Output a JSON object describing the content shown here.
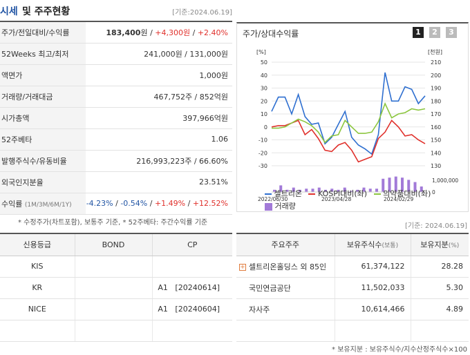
{
  "header": {
    "title_part1": "시세",
    "title_part2": "및 주주현황",
    "date": "[기준:2024.06.19]"
  },
  "info_rows": [
    {
      "label": "주가/전일대비/수익률",
      "price": "183,400",
      "unit1": "원",
      "sep1": " / ",
      "change": "+4,300",
      "unit2": "원",
      "sep2": " / ",
      "rate": "+2.40%"
    },
    {
      "label": "52Weeks 최고/최저",
      "value": "241,000원 / 131,000원"
    },
    {
      "label": "액면가",
      "value": "1,000원"
    },
    {
      "label": "거래량/거래대금",
      "value": "467,752주 / 852억원"
    },
    {
      "label": "시가총액",
      "value": "397,966억원"
    },
    {
      "label": "52주베타",
      "value": "1.06"
    },
    {
      "label": "발행주식수/유동비율",
      "value": "216,993,223주 / 66.60%"
    },
    {
      "label": "외국인지분율",
      "value": "23.51%"
    },
    {
      "label": "수익률",
      "sub": "(1M/3M/6M/1Y)",
      "r1": "-4.23%",
      "r2": "-0.54%",
      "r3": "+1.49%",
      "r4": "+12.52%",
      "sep": " / "
    }
  ],
  "note1": "* 수정주가(차트포함), 보통주 기준, * 52주베타: 주간수익률 기준",
  "chart_panel": {
    "title": "주가/상대수익률",
    "pages": [
      "1",
      "2",
      "3"
    ],
    "active_page": "1"
  },
  "chart_data": {
    "type": "line",
    "left_unit": "[%]",
    "right_unit": "[천원]",
    "left_ticks": [
      "50",
      "40",
      "30",
      "20",
      "10",
      "0",
      "-10",
      "-20",
      "-30"
    ],
    "right_ticks": [
      "210",
      "200",
      "190",
      "180",
      "170",
      "160",
      "150",
      "140",
      "130"
    ],
    "volume_tick": "1,000,000",
    "volume_zero": "0",
    "ylim": [
      -30,
      50
    ],
    "x_labels": [
      "2022/06/30",
      "2023/04/28",
      "2024/02/29"
    ],
    "series": [
      {
        "name": "셀트리온",
        "color": "#2e6fd0",
        "values": [
          12,
          23,
          23,
          10,
          25,
          8,
          2,
          3,
          -13,
          -8,
          2,
          12,
          -8,
          -14,
          -17,
          -21,
          -6,
          42,
          20,
          20,
          31,
          29,
          18,
          24
        ]
      },
      {
        "name": "KOSPI대비(좌)",
        "color": "#e0302b",
        "values": [
          0,
          1,
          1,
          3,
          5,
          -6,
          -2,
          -9,
          -18,
          -19,
          -14,
          -12,
          -18,
          -27,
          -25,
          -23,
          -9,
          -4,
          5,
          0,
          -7,
          -6,
          -10,
          -13
        ]
      },
      {
        "name": "의약품대비(좌)",
        "color": "#8cc63f",
        "values": [
          -1,
          -1,
          0,
          3,
          6,
          4,
          1,
          -4,
          -12,
          -7,
          -6,
          5,
          0,
          -5,
          -5,
          -4,
          4,
          18,
          7,
          10,
          11,
          14,
          13,
          14
        ]
      }
    ],
    "volume": {
      "name": "거래량",
      "color": "#a27ad8",
      "values": [
        2,
        6,
        2,
        4,
        2,
        3,
        3,
        4,
        2,
        3,
        2,
        4,
        1,
        2,
        4,
        3,
        3,
        12,
        13,
        14,
        13,
        11,
        9,
        5
      ],
      "max": 15
    }
  },
  "date2": "[기준: 2024.06.19]",
  "credit_table": {
    "headers": [
      "신용등급",
      "BOND",
      "CP"
    ],
    "rows": [
      [
        "KIS",
        "",
        ""
      ],
      [
        "KR",
        "",
        "A1   [20240614]"
      ],
      [
        "NICE",
        "",
        "A1   [20240604]"
      ],
      [
        "",
        "",
        ""
      ]
    ]
  },
  "holder_table": {
    "headers": [
      "주요주주",
      "보유주식수",
      "(보통)",
      "보유지분",
      "(%)"
    ],
    "rows": [
      {
        "name": "셀트리온홀딩스 외 85인",
        "expand": "+",
        "shares": "61,374,122",
        "pct": "28.28"
      },
      {
        "name": "국민연금공단",
        "shares": "11,502,033",
        "pct": "5.30"
      },
      {
        "name": "자사주",
        "shares": "10,614,466",
        "pct": "4.89"
      },
      {
        "name": "",
        "shares": "",
        "pct": ""
      }
    ]
  },
  "note2": "* 보유지분 : 보유주식수/지수산정주식수×100"
}
